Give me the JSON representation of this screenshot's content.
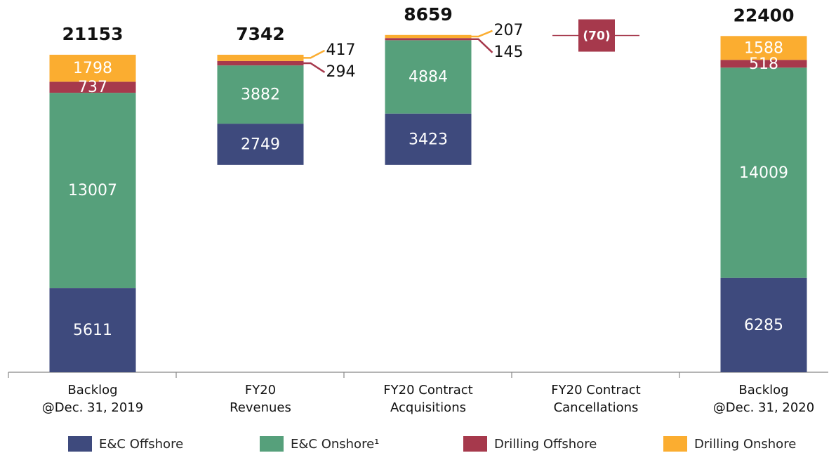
{
  "chart_data": {
    "type": "waterfall",
    "categories": [
      [
        "Backlog",
        "@Dec. 31, 2019"
      ],
      [
        "FY20",
        "Revenues"
      ],
      [
        "FY20 Contract",
        "Acquisitions"
      ],
      [
        "FY20 Contract",
        "Cancellations"
      ],
      [
        "Backlog",
        "@Dec. 31, 2020"
      ]
    ],
    "measure": [
      "total",
      "decrease",
      "relative",
      "relative",
      "total"
    ],
    "series": [
      {
        "name": "E&C Offshore",
        "color": "#3e4a7d",
        "values": [
          5611,
          2749,
          3423,
          null,
          6285
        ]
      },
      {
        "name": "E&C Onshore¹",
        "color": "#56a07b",
        "values": [
          13007,
          3882,
          4884,
          null,
          14009
        ]
      },
      {
        "name": "Drilling Offshore",
        "color": "#a6394c",
        "values": [
          737,
          294,
          145,
          -70,
          518
        ],
        "value_labels": [
          "737",
          "294",
          "145",
          "(70)",
          "518"
        ]
      },
      {
        "name": "Drilling Onshore",
        "color": "#fbad30",
        "values": [
          1798,
          417,
          207,
          null,
          1588
        ]
      }
    ],
    "totals": [
      21153,
      7342,
      8659,
      null,
      22400
    ],
    "ylim": [
      0,
      24800
    ]
  }
}
